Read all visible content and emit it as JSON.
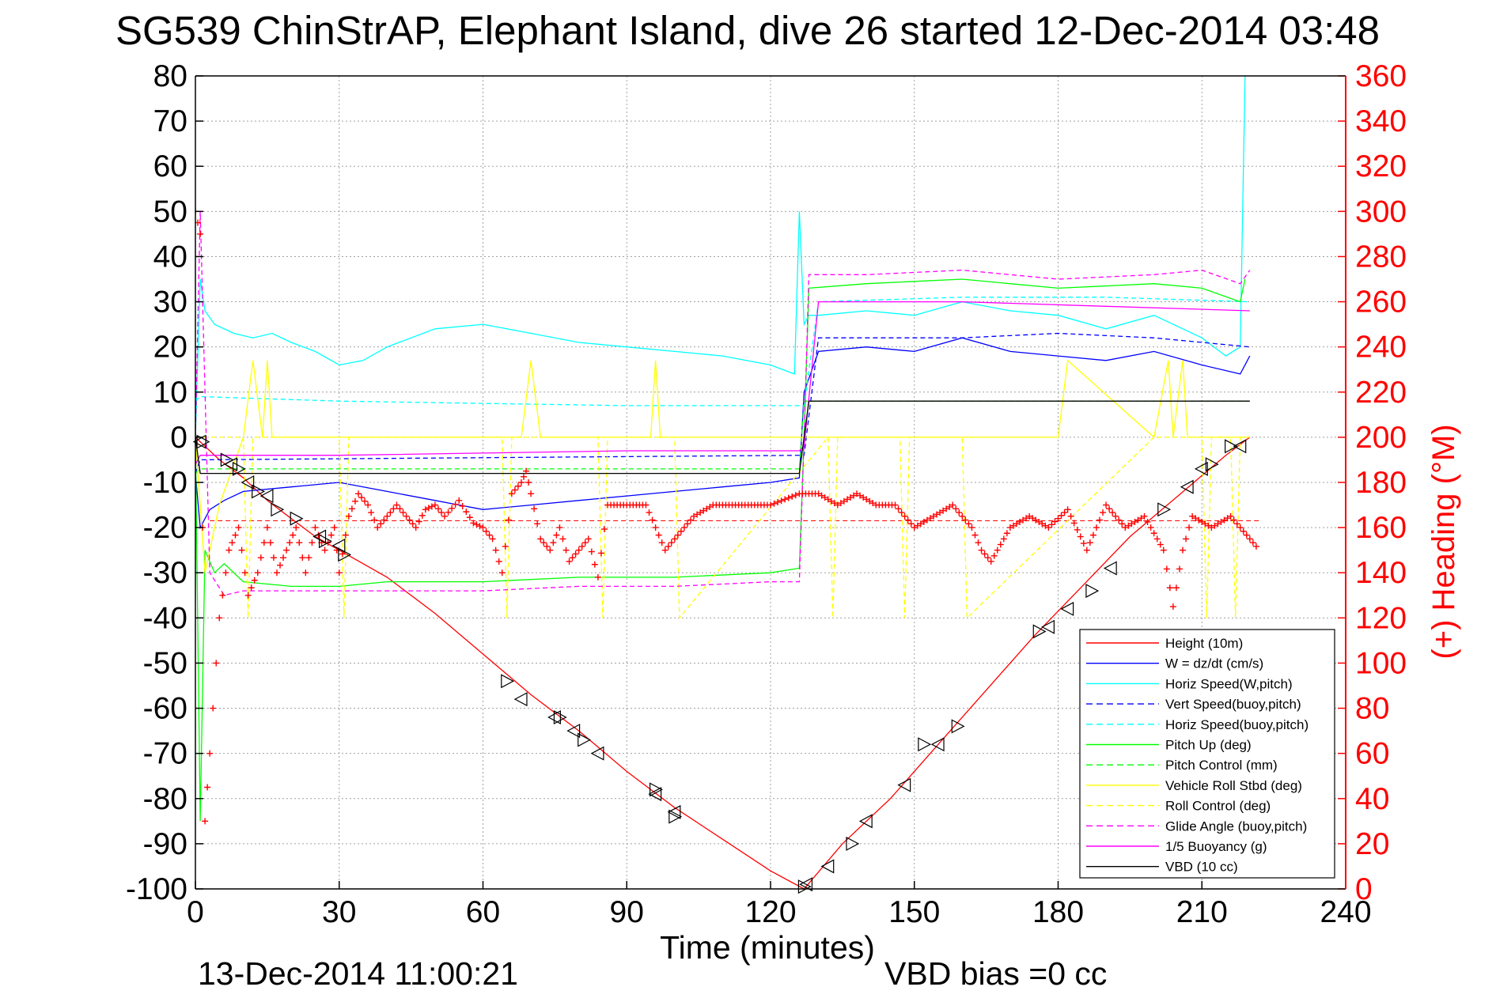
{
  "chart_data": {
    "type": "line",
    "title": "SG539 ChinStrAP, Elephant Island, dive 26 started 12-Dec-2014 03:48",
    "xlabel": "Time (minutes)",
    "ylabel": "",
    "y2label": "(+) Heading (°M)",
    "xlim": [
      0,
      240
    ],
    "ylim": [
      -100,
      80
    ],
    "y2lim": [
      0,
      360
    ],
    "x_ticks": [
      0,
      30,
      60,
      90,
      120,
      150,
      180,
      210,
      240
    ],
    "y_ticks": [
      80,
      70,
      60,
      50,
      40,
      30,
      20,
      10,
      0,
      -10,
      -20,
      -30,
      -40,
      -50,
      -60,
      -70,
      -80,
      -90,
      -100
    ],
    "y2_ticks": [
      360,
      340,
      320,
      300,
      280,
      260,
      240,
      220,
      200,
      180,
      160,
      140,
      120,
      100,
      80,
      60,
      40,
      20,
      0
    ],
    "grid": true,
    "legend_position": "bottom-right",
    "footer_left": "13-Dec-2014 11:00:21",
    "footer_right": "VBD bias =0 cc",
    "colors": {
      "red": "#ff0000",
      "blue": "#0000ff",
      "cyan": "#00ffff",
      "green": "#00ff00",
      "yellow": "#ffff00",
      "magenta": "#ff00ff",
      "black": "#000000",
      "grid": "#a0a0a0"
    },
    "series": [
      {
        "name": "Height (10m)",
        "color": "#ff0000",
        "dash": "solid",
        "x": [
          0,
          5,
          10,
          15,
          20,
          25,
          30,
          40,
          50,
          60,
          70,
          80,
          90,
          100,
          110,
          120,
          127,
          135,
          145,
          155,
          165,
          175,
          185,
          195,
          205,
          215,
          220
        ],
        "y": [
          0,
          -5,
          -9,
          -14,
          -18,
          -22,
          -25,
          -31,
          -39,
          -48,
          -57,
          -65,
          -74,
          -82,
          -89,
          -96,
          -100,
          -90,
          -80,
          -68,
          -56,
          -44,
          -33,
          -22,
          -13,
          -4,
          0
        ]
      },
      {
        "name": "W = dz/dt (cm/s)",
        "color": "#0000ff",
        "dash": "solid",
        "x": [
          0,
          1,
          3,
          6,
          10,
          20,
          30,
          40,
          50,
          60,
          70,
          80,
          90,
          100,
          110,
          120,
          126,
          127,
          130,
          140,
          150,
          160,
          170,
          180,
          190,
          200,
          210,
          218,
          220
        ],
        "y": [
          -8,
          -20,
          -16,
          -14,
          -12,
          -11,
          -10,
          -12,
          -14,
          -16,
          -15,
          -14,
          -13,
          -12,
          -11,
          -10,
          -9,
          10,
          19,
          20,
          19,
          22,
          19,
          18,
          17,
          19,
          16,
          14,
          18
        ]
      },
      {
        "name": "Horiz Speed(W,pitch)",
        "color": "#00ffff",
        "dash": "solid",
        "x": [
          0,
          1,
          2,
          4,
          8,
          12,
          16,
          20,
          25,
          30,
          35,
          40,
          50,
          60,
          70,
          80,
          90,
          100,
          110,
          120,
          125,
          126,
          127,
          128,
          130,
          140,
          150,
          160,
          170,
          180,
          190,
          200,
          210,
          215,
          218,
          219
        ],
        "y": [
          0,
          35,
          28,
          25,
          23,
          22,
          23,
          21,
          19,
          16,
          17,
          20,
          24,
          25,
          23,
          21,
          20,
          19,
          18,
          16,
          14,
          50,
          25,
          27,
          27,
          28,
          27,
          30,
          28,
          27,
          24,
          27,
          22,
          18,
          20,
          80
        ]
      },
      {
        "name": "Vert Speed(buoy,pitch)",
        "color": "#0000ff",
        "dash": "dashed",
        "x": [
          0,
          1,
          127,
          130,
          160,
          180,
          200,
          220
        ],
        "y": [
          -8,
          -5,
          -4,
          22,
          22,
          23,
          22,
          20
        ]
      },
      {
        "name": "Horiz Speed(buoy,pitch)",
        "color": "#00ffff",
        "dash": "dashed",
        "x": [
          0,
          1,
          30,
          60,
          90,
          120,
          127,
          130,
          160,
          190,
          220
        ],
        "y": [
          8,
          9,
          8,
          7.5,
          7,
          7,
          7,
          30,
          31,
          31,
          30
        ]
      },
      {
        "name": "Pitch Up (deg)",
        "color": "#00ff00",
        "dash": "solid",
        "x": [
          0,
          1,
          2,
          4,
          6,
          10,
          20,
          30,
          40,
          60,
          80,
          100,
          120,
          126,
          127,
          128,
          140,
          160,
          180,
          200,
          210,
          218,
          219
        ],
        "y": [
          0,
          -85,
          -25,
          -30,
          -28,
          -32,
          -33,
          -33,
          -32,
          -32,
          -31,
          -31,
          -30,
          -29,
          0,
          33,
          34,
          35,
          33,
          34,
          33,
          30,
          35
        ]
      },
      {
        "name": "Pitch Control (mm)",
        "color": "#00ff00",
        "dash": "dashed",
        "x": [
          0,
          1,
          126,
          127,
          220
        ],
        "y": [
          -8,
          -7,
          -7,
          8,
          8
        ]
      },
      {
        "name": "Vehicle Roll Stbd (deg)",
        "color": "#ffff00",
        "dash": "solid",
        "x": [
          0,
          2,
          5,
          10,
          12,
          14,
          15,
          16,
          18,
          30,
          60,
          63,
          64,
          68,
          70,
          72,
          90,
          95,
          96,
          97,
          100,
          120,
          127,
          128,
          150,
          180,
          182,
          200,
          203,
          204,
          206,
          207,
          210,
          220
        ],
        "y": [
          0,
          -30,
          -15,
          0,
          17,
          0,
          17,
          0,
          0,
          0,
          0,
          0,
          0,
          0,
          17,
          0,
          0,
          0,
          17,
          0,
          0,
          0,
          0,
          0,
          0,
          0,
          17,
          0,
          17,
          0,
          17,
          0,
          0,
          0
        ]
      },
      {
        "name": "Roll Control (deg)",
        "color": "#ffff00",
        "dash": "dashed",
        "x": [
          0,
          10,
          11,
          12,
          30,
          31,
          32,
          64,
          65,
          66,
          84,
          85,
          86,
          100,
          101,
          132,
          133,
          134,
          147,
          148,
          149,
          160,
          161,
          200,
          210,
          211,
          212,
          216,
          217,
          218,
          220
        ],
        "y": [
          0,
          0,
          -40,
          0,
          0,
          -40,
          0,
          0,
          -40,
          0,
          0,
          -40,
          0,
          0,
          -40,
          0,
          -40,
          0,
          0,
          -40,
          0,
          0,
          -40,
          0,
          0,
          -40,
          0,
          0,
          -40,
          0,
          0
        ]
      },
      {
        "name": "Glide Angle (buoy,pitch)",
        "color": "#ff00ff",
        "dash": "dashed",
        "x": [
          0,
          1,
          3,
          6,
          10,
          20,
          40,
          60,
          80,
          100,
          120,
          126,
          127,
          128,
          140,
          160,
          180,
          200,
          210,
          218,
          220
        ],
        "y": [
          0,
          50,
          -30,
          -35,
          -34,
          -34,
          -34,
          -34,
          -33,
          -33,
          -32,
          -32,
          0,
          36,
          36,
          37,
          35,
          36,
          37,
          34,
          37
        ]
      },
      {
        "name": "1/5 Buoyancy (g)",
        "color": "#ff00ff",
        "dash": "solid",
        "x": [
          0,
          1,
          30,
          60,
          90,
          126,
          127,
          130,
          160,
          190,
          220
        ],
        "y": [
          -6,
          -4,
          -4,
          -3.5,
          -3,
          -3,
          -2,
          30,
          30,
          29,
          28
        ]
      },
      {
        "name": "VBD (10 cc)",
        "color": "#000000",
        "dash": "solid",
        "x": [
          0,
          1,
          126,
          127,
          128,
          220
        ],
        "y": [
          0,
          -8,
          -8,
          0,
          8,
          8
        ]
      },
      {
        "name": "",
        "axis": "right",
        "color": "#ff0000",
        "marker": "plus",
        "x": [
          0,
          1,
          2,
          3,
          5,
          7,
          9,
          11,
          13,
          15,
          17,
          19,
          21,
          23,
          25,
          27,
          29,
          30,
          32,
          34,
          36,
          38,
          40,
          42,
          44,
          46,
          48,
          50,
          52,
          55,
          58,
          60,
          62,
          64,
          66,
          68,
          69,
          70,
          72,
          74,
          76,
          78,
          80,
          82,
          84,
          86,
          90,
          94,
          96,
          98,
          100,
          104,
          108,
          112,
          116,
          120,
          126,
          130,
          134,
          138,
          142,
          146,
          150,
          154,
          158,
          162,
          164,
          166,
          170,
          174,
          178,
          182,
          186,
          190,
          194,
          198,
          202,
          204,
          206,
          208,
          212,
          216,
          220,
          222
        ],
        "y": [
          300,
          290,
          30,
          60,
          120,
          150,
          160,
          130,
          140,
          160,
          140,
          150,
          160,
          140,
          160,
          150,
          160,
          140,
          165,
          175,
          170,
          160,
          165,
          170,
          165,
          160,
          168,
          170,
          165,
          172,
          162,
          160,
          155,
          140,
          175,
          180,
          185,
          175,
          155,
          150,
          160,
          145,
          150,
          155,
          138,
          170,
          170,
          170,
          160,
          150,
          155,
          165,
          170,
          170,
          170,
          170,
          175,
          175,
          170,
          175,
          170,
          170,
          160,
          165,
          170,
          160,
          150,
          145,
          160,
          165,
          160,
          168,
          150,
          170,
          160,
          165,
          150,
          125,
          150,
          165,
          160,
          165,
          155,
          150
        ]
      }
    ],
    "markers": {
      "right_triangle": {
        "x": [
          1.5,
          6.5,
          9,
          13,
          17,
          21,
          27,
          31,
          65,
          76,
          81,
          96,
          100,
          127,
          137,
          152,
          159,
          176,
          187,
          202,
          212,
          216
        ],
        "y": [
          -1,
          -5,
          -7,
          -12,
          -16,
          -18,
          -23,
          -26,
          -54,
          -62,
          -67,
          -78,
          -84,
          -99.5,
          -90,
          -68,
          -64,
          -43,
          -34,
          -16,
          -6,
          -2
        ]
      },
      "left_triangle": {
        "x": [
          1,
          7.5,
          11,
          15,
          26,
          30,
          68,
          75,
          79,
          84,
          96,
          100,
          127.5,
          132,
          140,
          148,
          155,
          178,
          182,
          191,
          207,
          210,
          218
        ],
        "y": [
          -1,
          -6,
          -10,
          -13,
          -22,
          -24,
          -58,
          -62,
          -65,
          -70,
          -79,
          -83,
          -99,
          -95,
          -85,
          -77,
          -68,
          -42,
          -38,
          -29,
          -11,
          -7,
          -2
        ]
      }
    },
    "legend": [
      "Height (10m)",
      "W = dz/dt (cm/s)",
      "Horiz Speed(W,pitch)",
      "Vert Speed(buoy,pitch)",
      "Horiz Speed(buoy,pitch)",
      "Pitch Up (deg)",
      "Pitch Control (mm)",
      "Vehicle Roll Stbd (deg)",
      "Roll Control (deg)",
      "Glide Angle (buoy,pitch)",
      "1/5 Buoyancy (g)",
      "VBD (10 cc)"
    ],
    "heading_baseline": 163
  }
}
